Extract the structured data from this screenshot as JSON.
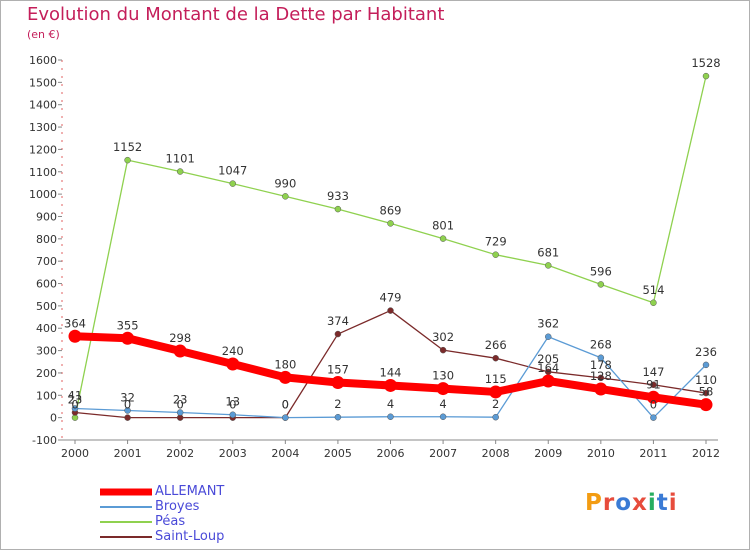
{
  "header": {
    "title": "Evolution du Montant de la Dette par Habitant",
    "subtitle": "(en €)"
  },
  "logo": {
    "text": "Proxiti",
    "colors": [
      "#f39c12",
      "#e74c3c",
      "#3a7bd5",
      "#e74c3c",
      "#27ae60",
      "#3a7bd5",
      "#e74c3c"
    ]
  },
  "chart_data": {
    "type": "line",
    "title": "Evolution du Montant de la Dette par Habitant",
    "ylabel": "(en €)",
    "xlabel": "",
    "x": [
      "2000",
      "2001",
      "2002",
      "2003",
      "2004",
      "2005",
      "2006",
      "2007",
      "2008",
      "2009",
      "2010",
      "2011",
      "2012"
    ],
    "ylim": [
      -100,
      1600
    ],
    "yticks": [
      -100,
      0,
      100,
      200,
      300,
      400,
      500,
      600,
      700,
      800,
      900,
      1000,
      1100,
      1200,
      1300,
      1400,
      1500,
      1600
    ],
    "grid": false,
    "legend_position": "bottom-left",
    "series": [
      {
        "name": "ALLEMANT",
        "color": "#ff0000",
        "values": [
          364,
          355,
          298,
          240,
          180,
          157,
          144,
          130,
          115,
          164,
          128,
          91,
          58
        ]
      },
      {
        "name": "Broyes",
        "color": "#5b9bd5",
        "values": [
          41,
          32,
          23,
          13,
          0,
          2,
          4,
          4,
          2,
          362,
          268,
          0,
          236
        ]
      },
      {
        "name": "Péas",
        "color": "#8fd14f",
        "values": [
          0,
          1152,
          1101,
          1047,
          990,
          933,
          869,
          801,
          729,
          681,
          596,
          514,
          1528
        ]
      },
      {
        "name": "Saint-Loup",
        "color": "#7b2a2a",
        "values": [
          23,
          0,
          0,
          0,
          0,
          374,
          479,
          302,
          266,
          205,
          178,
          147,
          110
        ]
      }
    ]
  }
}
